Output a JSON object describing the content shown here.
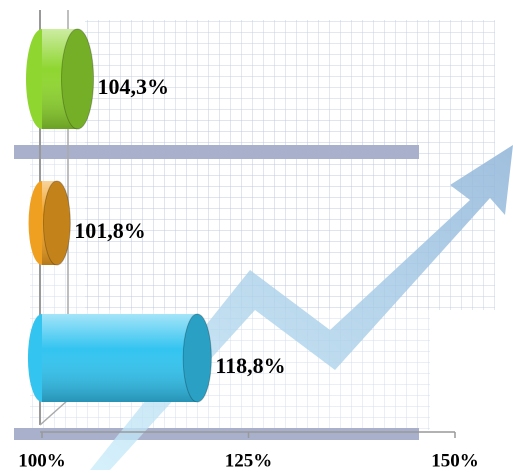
{
  "chart_data": {
    "type": "bar",
    "orientation": "horizontal",
    "values": [
      104.3,
      101.8,
      118.8
    ],
    "value_labels": [
      "104,3%",
      "101,8%",
      "118,8%"
    ],
    "colors": [
      "#8fd630",
      "#f0a020",
      "#33c4f0"
    ],
    "xlim": [
      100,
      150
    ],
    "xticks": [
      {
        "value": 100,
        "label": "100%"
      },
      {
        "value": 125,
        "label": "125%"
      },
      {
        "value": 150,
        "label": "150%"
      }
    ]
  }
}
